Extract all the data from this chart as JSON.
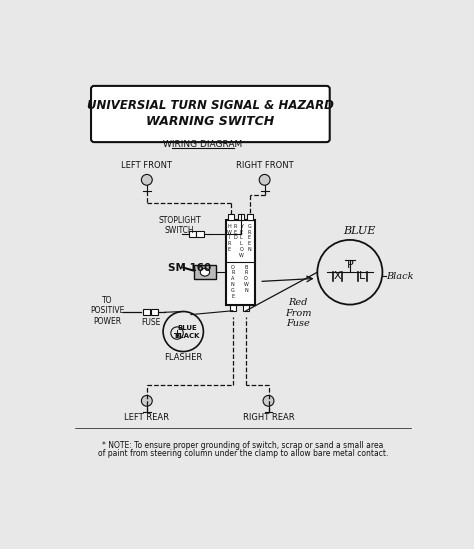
{
  "title_line1": "UNIVERSIAL TURN SIGNAL & HAZARD",
  "title_line2": "WARNING SWITCH",
  "subtitle": "WIRING DIAGRAM",
  "note_line1": "* NOTE: To ensure proper grounding of switch, scrap or sand a small area",
  "note_line2": "of paint from steering column under the clamp to allow bare metal contact.",
  "bg_color": "#e8e8e8",
  "black": "#111111",
  "gray": "#888888",
  "lf_label": "LEFT FRONT",
  "rf_label": "RIGHT FRONT",
  "lr_label": "LEFT REAR",
  "rr_label": "RIGHT REAR",
  "sm160": "SM 160",
  "stoplight": "STOPLIGHT\nSWITCH",
  "to_pos_pwr": "TO\nPOSITIVE\nPOWER",
  "fuse_lbl": "FUSE",
  "flasher_lbl": "FLASHER",
  "blue_lbl": "BLUE",
  "black_lbl": "Black",
  "red_from_fuse": "Red\nFrom\nFuse"
}
